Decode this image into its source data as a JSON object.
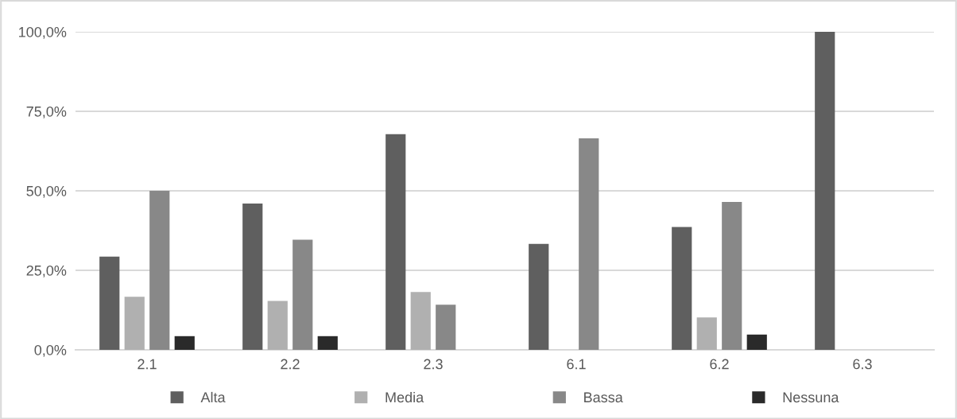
{
  "chart_data": {
    "type": "bar",
    "categories": [
      "2.1",
      "2.2",
      "2.3",
      "6.1",
      "6.2",
      "6.3"
    ],
    "series": [
      {
        "name": "Alta",
        "color": "#5f5f5f",
        "values": [
          29.3,
          46,
          67.8,
          33.3,
          38.6,
          100
        ]
      },
      {
        "name": "Media",
        "color": "#b0b0b0",
        "values": [
          16.7,
          15.4,
          18.2,
          0,
          10.2,
          0
        ]
      },
      {
        "name": "Bassa",
        "color": "#888888",
        "values": [
          50,
          34.6,
          14.2,
          66.5,
          46.5,
          0
        ]
      },
      {
        "name": "Nessuna",
        "color": "#2a2a2a",
        "values": [
          4.3,
          4.3,
          0,
          0,
          4.8,
          0
        ]
      }
    ],
    "ylim": [
      0,
      100
    ],
    "yticks": [
      {
        "value": 0,
        "label": "0,0%"
      },
      {
        "value": 25,
        "label": "25,0%"
      },
      {
        "value": 50,
        "label": "50,0%"
      },
      {
        "value": 75,
        "label": "75,0%"
      },
      {
        "value": 100,
        "label": "100,0%"
      }
    ],
    "grid": "y",
    "legend": "bottom"
  }
}
